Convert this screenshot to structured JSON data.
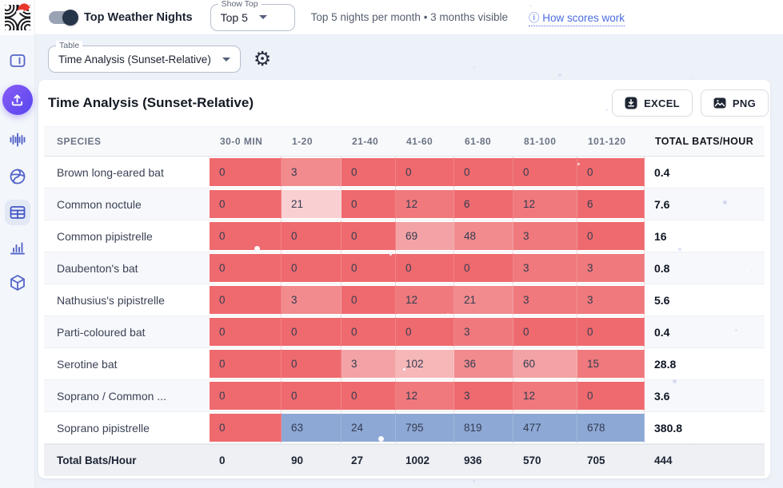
{
  "header": {
    "toggle_label": "Top Weather Nights",
    "show_top": {
      "label": "Show Top",
      "value": "Top 5"
    },
    "meta": "Top 5 nights per month • 3 months visible",
    "scores_link": "ⓘ How scores work"
  },
  "sidebar": {
    "items": [
      "panel",
      "upload",
      "waveform",
      "globe",
      "table",
      "bar-chart",
      "cube"
    ],
    "active_item": "table"
  },
  "selector": {
    "label": "Table",
    "value": "Time Analysis (Sunset-Relative)"
  },
  "page": {
    "title": "Time Analysis (Sunset-Relative)",
    "excel_label": "EXCEL",
    "png_label": "PNG"
  },
  "colors": {
    "heat_reds": [
      "#ee6a6e",
      "#ef797c",
      "#f18b8e",
      "#f3a3a5",
      "#f6b7b9",
      "#f9cfd1"
    ],
    "heat_blue": "#8da8d4",
    "accent": "#5646ee",
    "link": "#4a6ce0"
  },
  "table": {
    "columns": [
      "SPECIES",
      "30-0 MIN",
      "1-20",
      "21-40",
      "41-60",
      "61-80",
      "81-100",
      "101-120",
      "TOTAL BATS/HOUR"
    ],
    "rows": [
      {
        "species": "Brown long-eared bat",
        "values": [
          0,
          3,
          0,
          0,
          0,
          0,
          0
        ],
        "tints": [
          0,
          2,
          0,
          0,
          0,
          0,
          0
        ],
        "total": "0.4"
      },
      {
        "species": "Common noctule",
        "values": [
          0,
          21,
          0,
          12,
          6,
          12,
          6
        ],
        "tints": [
          0,
          5,
          0,
          1,
          0,
          1,
          0
        ],
        "total": "7.6"
      },
      {
        "species": "Common pipistrelle",
        "values": [
          0,
          0,
          0,
          69,
          48,
          3,
          0
        ],
        "tints": [
          0,
          0,
          0,
          3,
          2,
          1,
          0
        ],
        "total": "16"
      },
      {
        "species": "Daubenton's bat",
        "values": [
          0,
          0,
          0,
          0,
          0,
          3,
          3
        ],
        "tints": [
          0,
          0,
          0,
          0,
          0,
          1,
          1
        ],
        "total": "0.8"
      },
      {
        "species": "Nathusius's pipistrelle",
        "values": [
          0,
          3,
          0,
          12,
          21,
          3,
          3
        ],
        "tints": [
          0,
          2,
          0,
          1,
          2,
          1,
          1
        ],
        "total": "5.6"
      },
      {
        "species": "Parti-coloured bat",
        "values": [
          0,
          0,
          0,
          0,
          3,
          0,
          0
        ],
        "tints": [
          0,
          0,
          0,
          0,
          1,
          0,
          0
        ],
        "total": "0.4"
      },
      {
        "species": "Serotine bat",
        "values": [
          0,
          0,
          3,
          102,
          36,
          60,
          15
        ],
        "tints": [
          0,
          0,
          3,
          4,
          2,
          3,
          1
        ],
        "total": "28.8"
      },
      {
        "species": "Soprano / Common ...",
        "values": [
          0,
          0,
          0,
          12,
          3,
          12,
          0
        ],
        "tints": [
          0,
          0,
          0,
          1,
          0,
          1,
          0
        ],
        "total": "3.6"
      },
      {
        "species": "Soprano pipistrelle",
        "values": [
          0,
          63,
          24,
          795,
          819,
          477,
          678
        ],
        "tints": [
          0,
          "b",
          "b",
          "b",
          "b",
          "b",
          "b"
        ],
        "total": "380.8"
      }
    ],
    "footer": {
      "label": "Total Bats/Hour",
      "values": [
        0,
        90,
        27,
        1002,
        936,
        570,
        705
      ],
      "total": "444"
    }
  }
}
